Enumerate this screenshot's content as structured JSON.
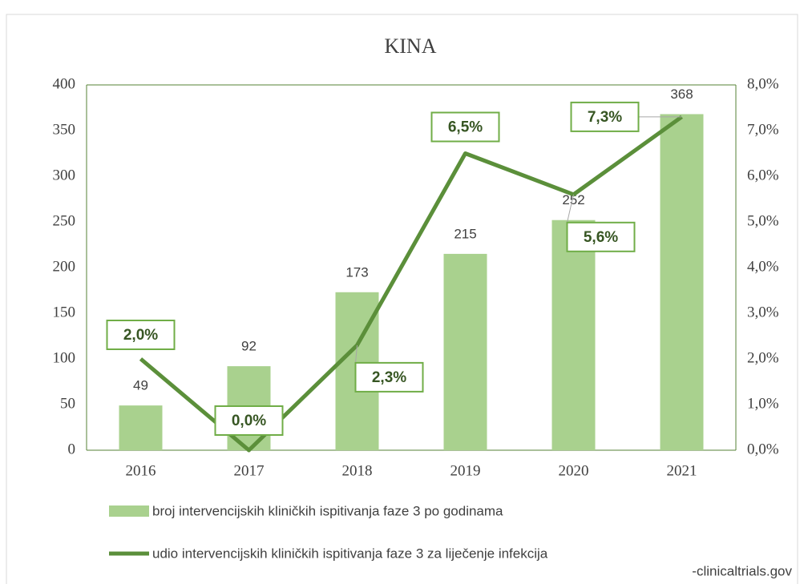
{
  "chart_data": {
    "type": "bar_line",
    "title": "KINA",
    "categories": [
      "2016",
      "2017",
      "2018",
      "2019",
      "2020",
      "2021"
    ],
    "series": [
      {
        "name": "broj intervencijskih kliničkih ispitivanja faze 3 po godinama",
        "type": "bar",
        "color": "#a9d18e",
        "values": [
          49,
          92,
          173,
          215,
          252,
          368
        ]
      },
      {
        "name": "udio intervencijskih kliničkih ispitivanja faze 3 za liječenje infekcija",
        "type": "line",
        "axis": "y2",
        "color": "#5b8f3a",
        "values": [
          2.0,
          0.0,
          2.3,
          6.5,
          5.6,
          7.3
        ],
        "value_labels": [
          "2,0%",
          "0,0%",
          "2,3%",
          "6,5%",
          "5,6%",
          "7,3%"
        ]
      }
    ],
    "ylim": [
      0,
      400
    ],
    "yticks": [
      0,
      50,
      100,
      150,
      200,
      250,
      300,
      350,
      400
    ],
    "y2lim": [
      0,
      8
    ],
    "y2ticks": [
      {
        "value": 0,
        "label": "0,0%"
      },
      {
        "value": 1,
        "label": "1,0%"
      },
      {
        "value": 2,
        "label": "2,0%"
      },
      {
        "value": 3,
        "label": "3,0%"
      },
      {
        "value": 4,
        "label": "4,0%"
      },
      {
        "value": 5,
        "label": "5,0%"
      },
      {
        "value": 6,
        "label": "6,0%"
      },
      {
        "value": 7,
        "label": "7,0%"
      },
      {
        "value": 8,
        "label": "8,0%"
      }
    ],
    "source": "-clinicaltrials.gov"
  }
}
